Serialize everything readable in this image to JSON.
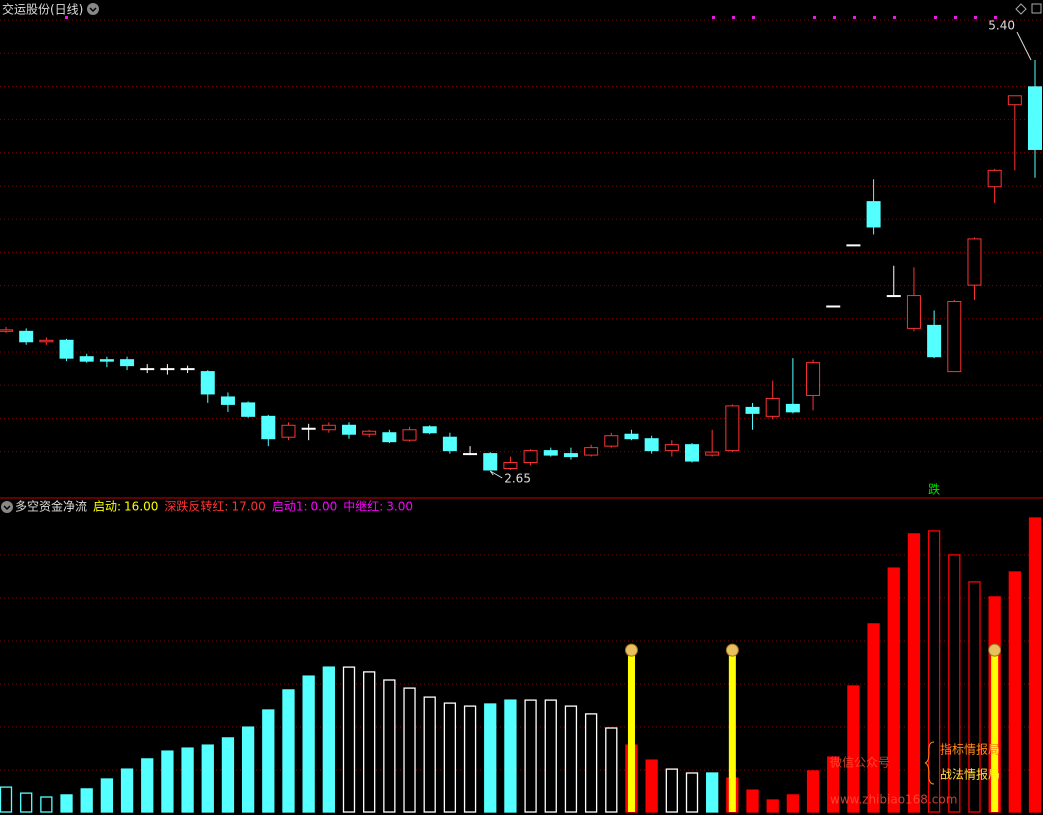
{
  "title": "交运股份(日线)",
  "chart_data": [
    {
      "type": "candlestick",
      "open": [
        3.58,
        3.58,
        3.51,
        3.52,
        3.41,
        3.39,
        3.39,
        3.33,
        3.33,
        3.33,
        3.31,
        3.14,
        3.1,
        3.01,
        2.87,
        2.93,
        2.92,
        2.95,
        2.89,
        2.9,
        2.85,
        2.94,
        2.87,
        2.76,
        2.76,
        2.66,
        2.7,
        2.78,
        2.76,
        2.75,
        2.81,
        2.89,
        2.86,
        2.78,
        2.82,
        2.75,
        2.78,
        3.07,
        3.01,
        3.09,
        3.15,
        3.75,
        4.16,
        4.45,
        3.82,
        3.6,
        3.62,
        3.31,
        3.89,
        4.55,
        5.1,
        5.22
      ],
      "high": [
        3.61,
        3.6,
        3.54,
        3.53,
        3.43,
        3.41,
        3.41,
        3.36,
        3.36,
        3.35,
        3.32,
        3.17,
        3.11,
        3.02,
        2.97,
        2.96,
        2.97,
        2.97,
        2.92,
        2.92,
        2.94,
        2.95,
        2.9,
        2.81,
        2.77,
        2.74,
        2.79,
        2.8,
        2.8,
        2.82,
        2.9,
        2.92,
        2.88,
        2.85,
        2.83,
        2.92,
        3.09,
        3.1,
        3.25,
        3.4,
        3.39,
        3.75,
        4.16,
        4.6,
        4.02,
        4.01,
        3.72,
        3.79,
        4.21,
        4.67,
        5.16,
        5.4
      ],
      "low": [
        3.57,
        3.49,
        3.49,
        3.38,
        3.37,
        3.34,
        3.32,
        3.3,
        3.29,
        3.3,
        3.1,
        3.04,
        3.0,
        2.81,
        2.85,
        2.85,
        2.9,
        2.86,
        2.87,
        2.83,
        2.84,
        2.89,
        2.76,
        2.75,
        2.65,
        2.65,
        2.68,
        2.74,
        2.72,
        2.74,
        2.8,
        2.85,
        2.76,
        2.74,
        2.7,
        2.74,
        2.77,
        2.92,
        2.99,
        3.03,
        3.05,
        3.75,
        4.16,
        4.23,
        3.81,
        3.58,
        3.4,
        3.31,
        3.79,
        4.44,
        4.66,
        4.61
      ],
      "close": [
        3.59,
        3.51,
        3.52,
        3.4,
        3.38,
        3.38,
        3.35,
        3.33,
        3.33,
        3.33,
        3.16,
        3.09,
        3.01,
        2.86,
        2.95,
        2.93,
        2.95,
        2.89,
        2.91,
        2.84,
        2.92,
        2.9,
        2.78,
        2.76,
        2.65,
        2.7,
        2.78,
        2.75,
        2.74,
        2.8,
        2.88,
        2.86,
        2.78,
        2.82,
        2.71,
        2.77,
        3.08,
        3.03,
        3.13,
        3.04,
        3.37,
        3.75,
        4.16,
        4.28,
        3.82,
        3.82,
        3.41,
        3.78,
        4.2,
        4.66,
        5.16,
        4.8
      ],
      "up_color": "#ff3232",
      "down_color": "#54ffff",
      "flat_color": "#ffffff",
      "annotations": [
        {
          "index": 51,
          "value": 5.4,
          "label": "5.40"
        },
        {
          "index": 24,
          "value": 2.65,
          "label": "2.65"
        }
      ],
      "signal_text": {
        "index": 46,
        "text": "跌",
        "color": "#00e000"
      }
    },
    {
      "type": "bar",
      "title": "多空资金净流",
      "legend": [
        {
          "name": "启动:",
          "value": 16,
          "value_label": "16.00",
          "color": "#ffff00"
        },
        {
          "name": "深跌反转红:",
          "value": 17,
          "value_label": "17.00",
          "color": "#ff3232"
        },
        {
          "name": "启动1:",
          "value": 0,
          "value_label": "0.00",
          "color": "#ff00ff"
        },
        {
          "name": "中继红:",
          "value": 3,
          "value_label": "3.00",
          "color": "#ff00ff"
        }
      ],
      "ylim": [
        0,
        100
      ],
      "values": [
        8.3,
        6.3,
        5,
        5.7,
        7.7,
        11,
        14.3,
        17.7,
        20.3,
        21.3,
        22.3,
        24.7,
        28.3,
        34,
        40.7,
        45.3,
        48.3,
        48.3,
        46.7,
        44,
        41.3,
        38.3,
        36.3,
        35.3,
        36,
        37.3,
        37.3,
        37.3,
        35.3,
        32.7,
        28,
        22.3,
        17.3,
        14.3,
        13,
        13,
        11.3,
        7.3,
        4,
        5.7,
        13.7,
        18.3,
        42,
        62.7,
        81.3,
        92.7,
        93.7,
        85.7,
        76.7,
        71.7,
        80,
        98
      ],
      "colors": [
        "#54ffff",
        "#54ffff",
        "#54ffff",
        "#54ffff",
        "#54ffff",
        "#54ffff",
        "#54ffff",
        "#54ffff",
        "#54ffff",
        "#54ffff",
        "#54ffff",
        "#54ffff",
        "#54ffff",
        "#54ffff",
        "#54ffff",
        "#54ffff",
        "#54ffff",
        "#ffffff",
        "#ffffff",
        "#ffffff",
        "#ffffff",
        "#ffffff",
        "#ffffff",
        "#ffffff",
        "#54ffff",
        "#54ffff",
        "#ffffff",
        "#ffffff",
        "#ffffff",
        "#ffffff",
        "#ffffff",
        "#ff0000",
        "#ff0000",
        "#ffffff",
        "#ffffff",
        "#54ffff",
        "#ff0000",
        "#ff0000",
        "#ff0000",
        "#ff0000",
        "#ff0000",
        "#ff0000",
        "#ff0000",
        "#ff0000",
        "#ff0000",
        "#ff0000",
        "#ff0000",
        "#ff0000",
        "#ff0000",
        "#ff0000",
        "#ff0000",
        "#ff0000"
      ],
      "filled": [
        false,
        false,
        false,
        true,
        true,
        true,
        true,
        true,
        true,
        true,
        true,
        true,
        true,
        true,
        true,
        true,
        true,
        false,
        false,
        false,
        false,
        false,
        false,
        false,
        true,
        true,
        false,
        false,
        false,
        false,
        false,
        true,
        true,
        false,
        false,
        true,
        true,
        true,
        true,
        true,
        true,
        true,
        true,
        true,
        true,
        true,
        false,
        false,
        false,
        true,
        true,
        true
      ],
      "signals": {
        "color": "#ffff00",
        "values": [
          null,
          null,
          null,
          null,
          null,
          null,
          null,
          null,
          null,
          null,
          null,
          null,
          null,
          null,
          null,
          null,
          null,
          null,
          null,
          null,
          null,
          null,
          null,
          null,
          null,
          null,
          null,
          null,
          null,
          null,
          null,
          52.3,
          null,
          null,
          null,
          null,
          52.3,
          null,
          null,
          null,
          null,
          null,
          null,
          null,
          null,
          null,
          null,
          null,
          null,
          52.3,
          null,
          null
        ]
      }
    }
  ],
  "watermark": {
    "line1": "微信公众号",
    "line2": "指标情报局",
    "line3": "战法情报局",
    "url": "www.zhibiao168.com"
  }
}
